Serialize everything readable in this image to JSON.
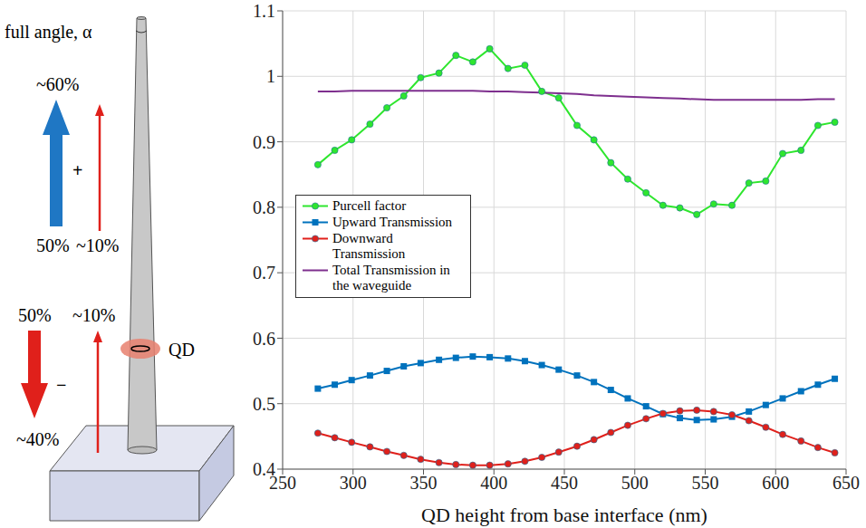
{
  "chart_data": {
    "type": "line",
    "x_label": "QD height from base interface (nm)",
    "x": [
      275,
      287,
      299,
      312,
      324,
      336,
      348,
      361,
      373,
      385,
      397,
      410,
      422,
      434,
      446,
      459,
      471,
      483,
      495,
      508,
      520,
      532,
      544,
      556,
      569,
      581,
      593,
      605,
      618,
      630,
      642
    ],
    "series": [
      {
        "name": "Purcell factor",
        "color": "#2ee62e",
        "marker": "circle",
        "values": [
          0.865,
          0.887,
          0.903,
          0.927,
          0.952,
          0.97,
          0.998,
          1.005,
          1.032,
          1.022,
          1.042,
          1.012,
          1.017,
          0.977,
          0.967,
          0.925,
          0.903,
          0.868,
          0.843,
          0.822,
          0.803,
          0.799,
          0.789,
          0.805,
          0.803,
          0.837,
          0.84,
          0.882,
          0.887,
          0.925,
          0.93
        ]
      },
      {
        "name": "Upward Transmission",
        "color": "#0072bd",
        "marker": "square",
        "values": [
          0.523,
          0.529,
          0.536,
          0.543,
          0.55,
          0.557,
          0.562,
          0.567,
          0.57,
          0.572,
          0.571,
          0.569,
          0.565,
          0.559,
          0.552,
          0.543,
          0.533,
          0.521,
          0.508,
          0.496,
          0.484,
          0.478,
          0.475,
          0.476,
          0.48,
          0.488,
          0.498,
          0.508,
          0.519,
          0.529,
          0.538
        ]
      },
      {
        "name": "Downward Transmission",
        "color": "#e0201b",
        "marker": "circle",
        "values": [
          0.455,
          0.448,
          0.441,
          0.434,
          0.427,
          0.421,
          0.415,
          0.41,
          0.407,
          0.406,
          0.406,
          0.408,
          0.412,
          0.418,
          0.426,
          0.435,
          0.445,
          0.456,
          0.467,
          0.477,
          0.485,
          0.489,
          0.49,
          0.488,
          0.483,
          0.474,
          0.464,
          0.453,
          0.443,
          0.433,
          0.425
        ]
      },
      {
        "name": "Total Transmission in the waveguide",
        "color": "#7e2f8e",
        "marker": "none",
        "values": [
          0.977,
          0.977,
          0.978,
          0.978,
          0.978,
          0.978,
          0.978,
          0.978,
          0.978,
          0.978,
          0.977,
          0.977,
          0.976,
          0.975,
          0.974,
          0.973,
          0.971,
          0.97,
          0.969,
          0.968,
          0.967,
          0.966,
          0.965,
          0.964,
          0.964,
          0.964,
          0.964,
          0.964,
          0.964,
          0.965,
          0.965
        ]
      }
    ],
    "xlim": [
      250,
      650
    ],
    "xticks": [
      250,
      300,
      350,
      400,
      450,
      500,
      550,
      600,
      650
    ],
    "ylim": [
      0.4,
      1.1
    ],
    "yticks": [
      0.4,
      0.5,
      0.6,
      0.7,
      0.8,
      0.9,
      1,
      1.1
    ],
    "grid": true,
    "legend": "left"
  },
  "diagram": {
    "angle_label": "full angle, α",
    "top_total": "~60%",
    "top_sign": "+",
    "top_emitted": "50%",
    "top_reflected": "~10%",
    "bottom_emitted": "50%",
    "bottom_reflected": "~10%",
    "bottom_sign": "−",
    "bottom_total": "~40%",
    "qd_label": "QD"
  }
}
